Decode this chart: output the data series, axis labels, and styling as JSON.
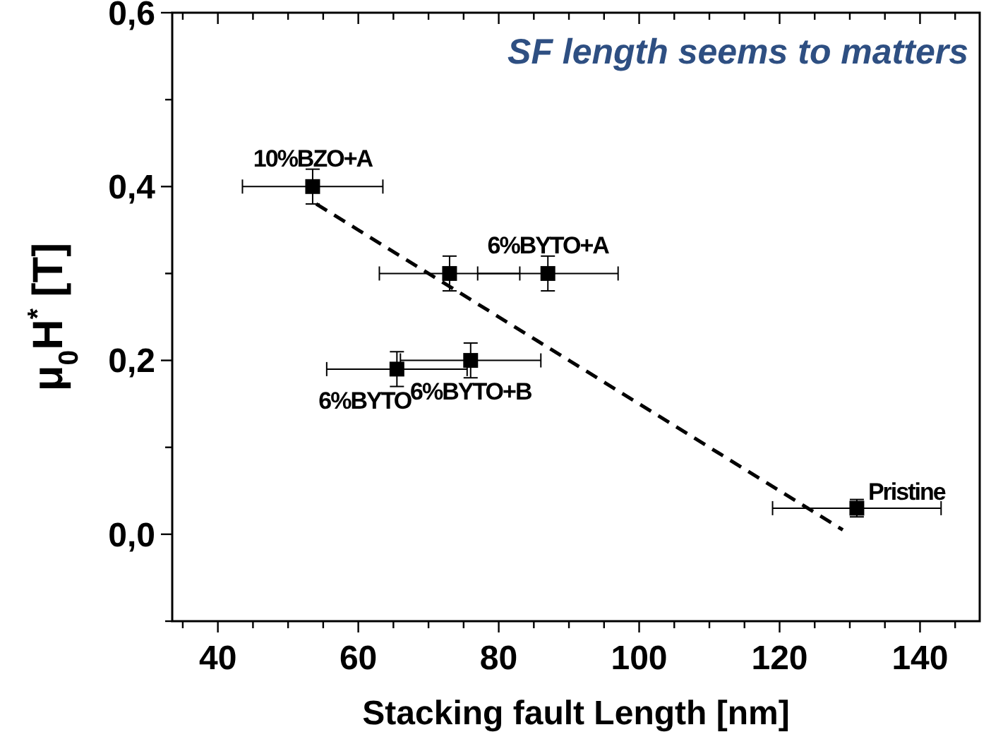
{
  "chart_data": {
    "type": "scatter",
    "xlabel": "Stacking fault Length [nm]",
    "ylabel": "μ$_{0}$H$^{*}$ [T]",
    "xlim": [
      33.5,
      148.5
    ],
    "ylim": [
      -0.1,
      0.6
    ],
    "xticks": [
      {
        "value": 35,
        "label": null
      },
      40,
      {
        "value": 45,
        "label": null
      },
      {
        "value": 50,
        "label": null
      },
      {
        "value": 55,
        "label": null
      },
      60,
      {
        "value": 65,
        "label": null
      },
      {
        "value": 70,
        "label": null
      },
      {
        "value": 75,
        "label": null
      },
      80,
      {
        "value": 85,
        "label": null
      },
      {
        "value": 90,
        "label": null
      },
      {
        "value": 95,
        "label": null
      },
      100,
      {
        "value": 105,
        "label": null
      },
      {
        "value": 110,
        "label": null
      },
      {
        "value": 115,
        "label": null
      },
      120,
      {
        "value": 125,
        "label": null
      },
      {
        "value": 130,
        "label": null
      },
      {
        "value": 135,
        "label": null
      },
      140,
      {
        "value": 145,
        "label": null
      }
    ],
    "yticks": [
      {
        "value": -0.1,
        "label": null
      },
      {
        "value": 0,
        "label": "0,0"
      },
      {
        "value": 0.1,
        "label": null
      },
      {
        "value": 0.2,
        "label": "0,2"
      },
      {
        "value": 0.3,
        "label": null
      },
      {
        "value": 0.4,
        "label": "0,4"
      },
      {
        "value": 0.5,
        "label": null
      },
      {
        "value": 0.6,
        "label": "0,6"
      }
    ],
    "marker": "square",
    "grid": false,
    "series": [
      {
        "color": "#000000",
        "x": [
          53.5,
          73,
          87,
          65.5,
          76,
          131
        ],
        "values": [
          0.4,
          0.3,
          0.3,
          0.19,
          0.2,
          0.03
        ],
        "errors": [
          0.02,
          0.02,
          0.02,
          0.02,
          0.02,
          0.01
        ],
        "xerrors": [
          10,
          10,
          10,
          10,
          10,
          12
        ]
      },
      {
        "type": "line",
        "color": "#000000",
        "line_style": "dashed",
        "marker": "none",
        "x": [
          54,
          129
        ],
        "values": [
          0.38,
          0.005
        ]
      }
    ],
    "annotations": [
      "SF length seems to matters",
      {
        "text": "10%BZO+A",
        "x": 53.5,
        "y": 0.4
      },
      {
        "text": "6%BYTO+A",
        "x": 87,
        "y": 0.3
      },
      {
        "text": "6%BYTO",
        "x": 65.5,
        "y": 0.19
      },
      {
        "text": "6%BYTO+B",
        "x": 76,
        "y": 0.2
      },
      {
        "text": "Pristine",
        "x": 131,
        "y": 0.03
      }
    ]
  }
}
